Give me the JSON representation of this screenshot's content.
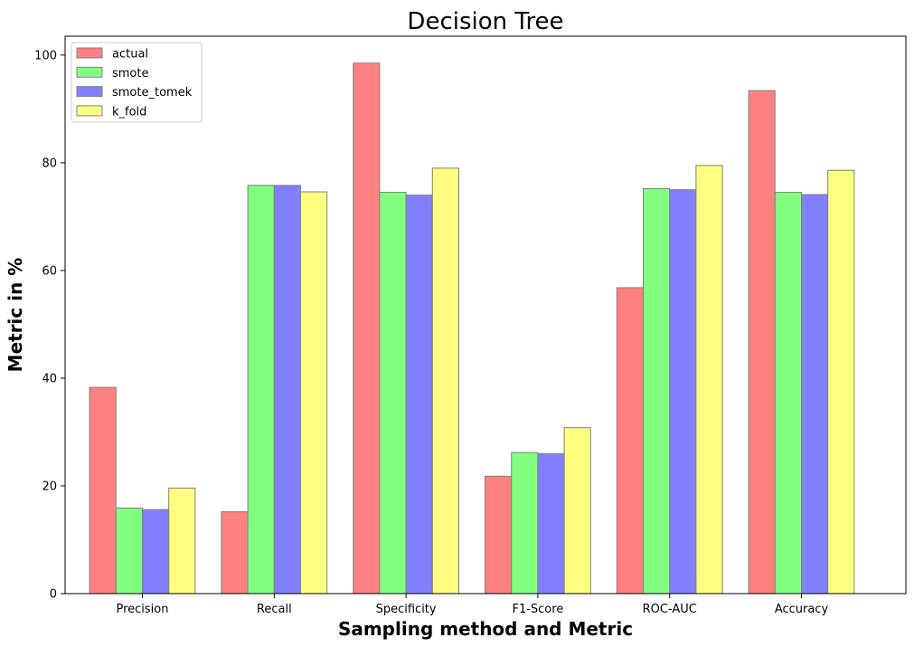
{
  "chart_data": {
    "type": "bar",
    "title": "Decision Tree",
    "xlabel": "Sampling method and Metric",
    "ylabel": "Metric in %",
    "categories": [
      "Precision",
      "Recall",
      "Specificity",
      "F1-Score",
      "ROC-AUC",
      "Accuracy"
    ],
    "ylim": [
      0,
      103.5
    ],
    "yticks": [
      0,
      20,
      40,
      60,
      80,
      100
    ],
    "grid": false,
    "legend_position": "top-left",
    "series": [
      {
        "name": "actual",
        "color": "#ff8080",
        "values": [
          38.3,
          15.2,
          98.5,
          21.8,
          56.8,
          93.4
        ]
      },
      {
        "name": "smote",
        "color": "#80ff80",
        "values": [
          15.9,
          75.8,
          74.5,
          26.2,
          75.2,
          74.5
        ]
      },
      {
        "name": "smote_tomek",
        "color": "#8080ff",
        "values": [
          15.6,
          75.8,
          74.0,
          26.0,
          75.0,
          74.1
        ]
      },
      {
        "name": "k_fold",
        "color": "#ffff80",
        "values": [
          19.6,
          74.6,
          79.0,
          30.8,
          79.5,
          78.6
        ]
      }
    ]
  }
}
